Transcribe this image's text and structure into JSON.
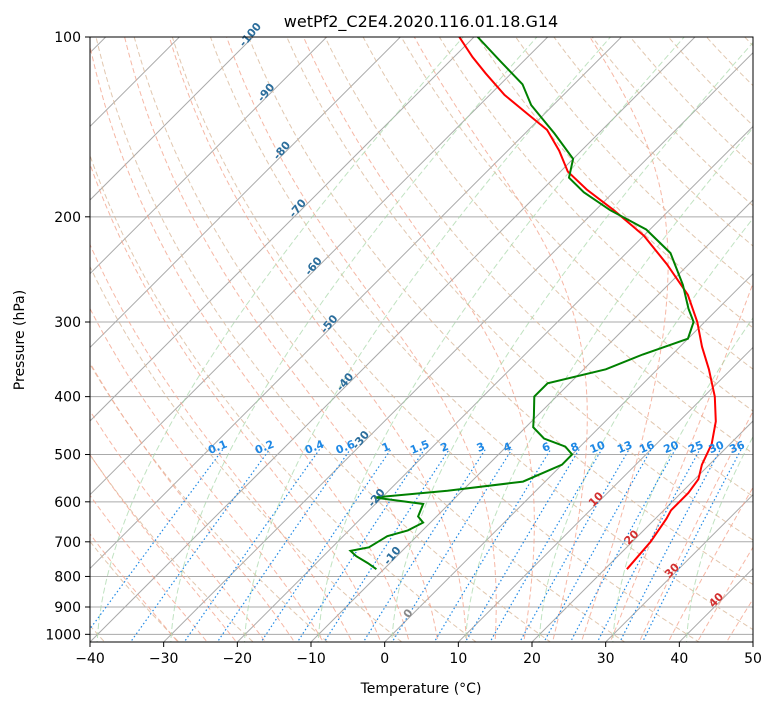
{
  "chart_data": {
    "type": "line",
    "title": "wetPf2_C2E4.2020.116.01.18.G14",
    "xlabel": "Temperature (°C)",
    "ylabel": "Pressure (hPa)",
    "xlim": [
      -40,
      50
    ],
    "ylim": [
      1030,
      100
    ],
    "y_scale": "log",
    "skew": "skew-T log-P",
    "grid": true,
    "x_ticks": [
      -40,
      -30,
      -20,
      -10,
      0,
      10,
      20,
      30,
      40,
      50
    ],
    "x_tick_labels": [
      "−40",
      "−30",
      "−20",
      "−10",
      "0",
      "10",
      "20",
      "30",
      "40",
      "50"
    ],
    "y_ticks": [
      100,
      200,
      300,
      400,
      500,
      600,
      700,
      800,
      900,
      1000
    ],
    "y_tick_labels": [
      "100",
      "200",
      "300",
      "400",
      "500",
      "600",
      "700",
      "800",
      "900",
      "1000"
    ],
    "series": [
      {
        "color": "#ff0000",
        "kind": "temperature",
        "points": [
          [
            778,
            23.0
          ],
          [
            700,
            22.5
          ],
          [
            640,
            21.5
          ],
          [
            620,
            21.0
          ],
          [
            580,
            21.0
          ],
          [
            550,
            20.5
          ],
          [
            520,
            19.0
          ],
          [
            480,
            17.5
          ],
          [
            440,
            15.0
          ],
          [
            400,
            11.5
          ],
          [
            360,
            7.0
          ],
          [
            330,
            3.0
          ],
          [
            300,
            -1.0
          ],
          [
            270,
            -6.0
          ],
          [
            240,
            -13.0
          ],
          [
            215,
            -20.0
          ],
          [
            195,
            -27.5
          ],
          [
            180,
            -34.0
          ],
          [
            168,
            -39.0
          ],
          [
            155,
            -43.0
          ],
          [
            143,
            -47.5
          ],
          [
            135,
            -52.0
          ],
          [
            125,
            -58.0
          ],
          [
            115,
            -63.5
          ],
          [
            108,
            -67.5
          ],
          [
            100,
            -72.0
          ]
        ]
      },
      {
        "color": "#008000",
        "kind": "dewpoint",
        "points": [
          [
            778,
            -11.0
          ],
          [
            760,
            -13.0
          ],
          [
            740,
            -15.5
          ],
          [
            725,
            -17.0
          ],
          [
            715,
            -15.0
          ],
          [
            700,
            -14.5
          ],
          [
            685,
            -14.0
          ],
          [
            670,
            -12.0
          ],
          [
            650,
            -11.0
          ],
          [
            635,
            -12.5
          ],
          [
            620,
            -13.0
          ],
          [
            605,
            -13.5
          ],
          [
            590,
            -21.0
          ],
          [
            575,
            -12.0
          ],
          [
            555,
            -3.0
          ],
          [
            520,
            0.0
          ],
          [
            500,
            0.0
          ],
          [
            485,
            -2.0
          ],
          [
            470,
            -6.0
          ],
          [
            450,
            -9.0
          ],
          [
            430,
            -10.5
          ],
          [
            400,
            -13.0
          ],
          [
            380,
            -13.0
          ],
          [
            360,
            -7.0
          ],
          [
            340,
            -4.0
          ],
          [
            320,
            0.0
          ],
          [
            300,
            -1.5
          ],
          [
            285,
            -4.0
          ],
          [
            260,
            -8.0
          ],
          [
            230,
            -14.0
          ],
          [
            210,
            -20.5
          ],
          [
            195,
            -28.0
          ],
          [
            182,
            -34.0
          ],
          [
            172,
            -38.0
          ],
          [
            160,
            -40.0
          ],
          [
            145,
            -46.0
          ],
          [
            130,
            -53.0
          ],
          [
            120,
            -57.0
          ],
          [
            110,
            -63.0
          ],
          [
            100,
            -69.5
          ]
        ]
      }
    ],
    "dry_adiabats": {
      "color": "#d9b99b",
      "labels": [
        {
          "t": -100,
          "text": "-100"
        },
        {
          "t": -90,
          "text": "-90"
        },
        {
          "t": -80,
          "text": "-80"
        },
        {
          "t": -70,
          "text": "-70"
        },
        {
          "t": -60,
          "text": "-60"
        },
        {
          "t": -50,
          "text": "-50"
        },
        {
          "t": -40,
          "text": "-40"
        },
        {
          "t": -30,
          "text": "-30"
        },
        {
          "t": -20,
          "text": "-20"
        },
        {
          "t": -10,
          "text": "-10"
        },
        {
          "t": 0,
          "text": "0"
        }
      ]
    },
    "moist_adiabats": {
      "color": "#fa8072",
      "labels": [
        {
          "t": 10,
          "text": "10"
        },
        {
          "t": 20,
          "text": "20"
        },
        {
          "t": 30,
          "text": "30"
        },
        {
          "t": 40,
          "text": "40"
        }
      ]
    },
    "mixing_ratio_lines": {
      "color": "#1e88e5",
      "label_pressure": 500,
      "labels": [
        "0.1",
        "0.2",
        "0.4",
        "0.6",
        "1",
        "1.5",
        "2",
        "3",
        "4",
        "6",
        "8",
        "10",
        "13",
        "16",
        "20",
        "25",
        "30",
        "36"
      ]
    }
  }
}
